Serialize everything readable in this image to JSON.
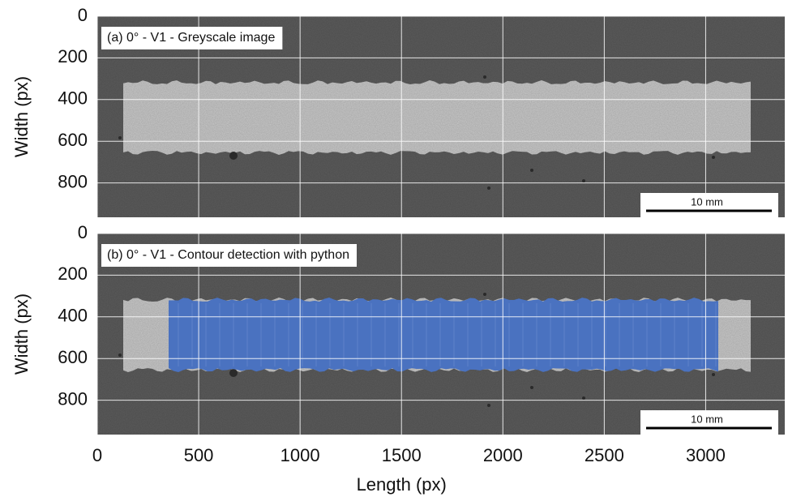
{
  "chart_data": [
    {
      "type": "image",
      "annotation": "(a) 0° - V1 - Greyscale image",
      "ylabel": "Width (px)",
      "ylim": [
        0,
        965
      ],
      "yticks": [
        0,
        200,
        400,
        600,
        800
      ],
      "scale_bar": "10 mm",
      "grid": true
    },
    {
      "type": "image",
      "annotation": "(b) 0° - V1 - Contour detection with python",
      "ylabel": "Width (px)",
      "ylim": [
        0,
        965
      ],
      "yticks": [
        0,
        200,
        400,
        600,
        800
      ],
      "scale_bar": "10 mm",
      "grid": true,
      "highlight_color": "#4a72c0",
      "xlabel": "Length (px)",
      "xlim": [
        0,
        3390
      ],
      "xticks": [
        0,
        500,
        1000,
        1500,
        2000,
        2500,
        3000
      ]
    }
  ]
}
